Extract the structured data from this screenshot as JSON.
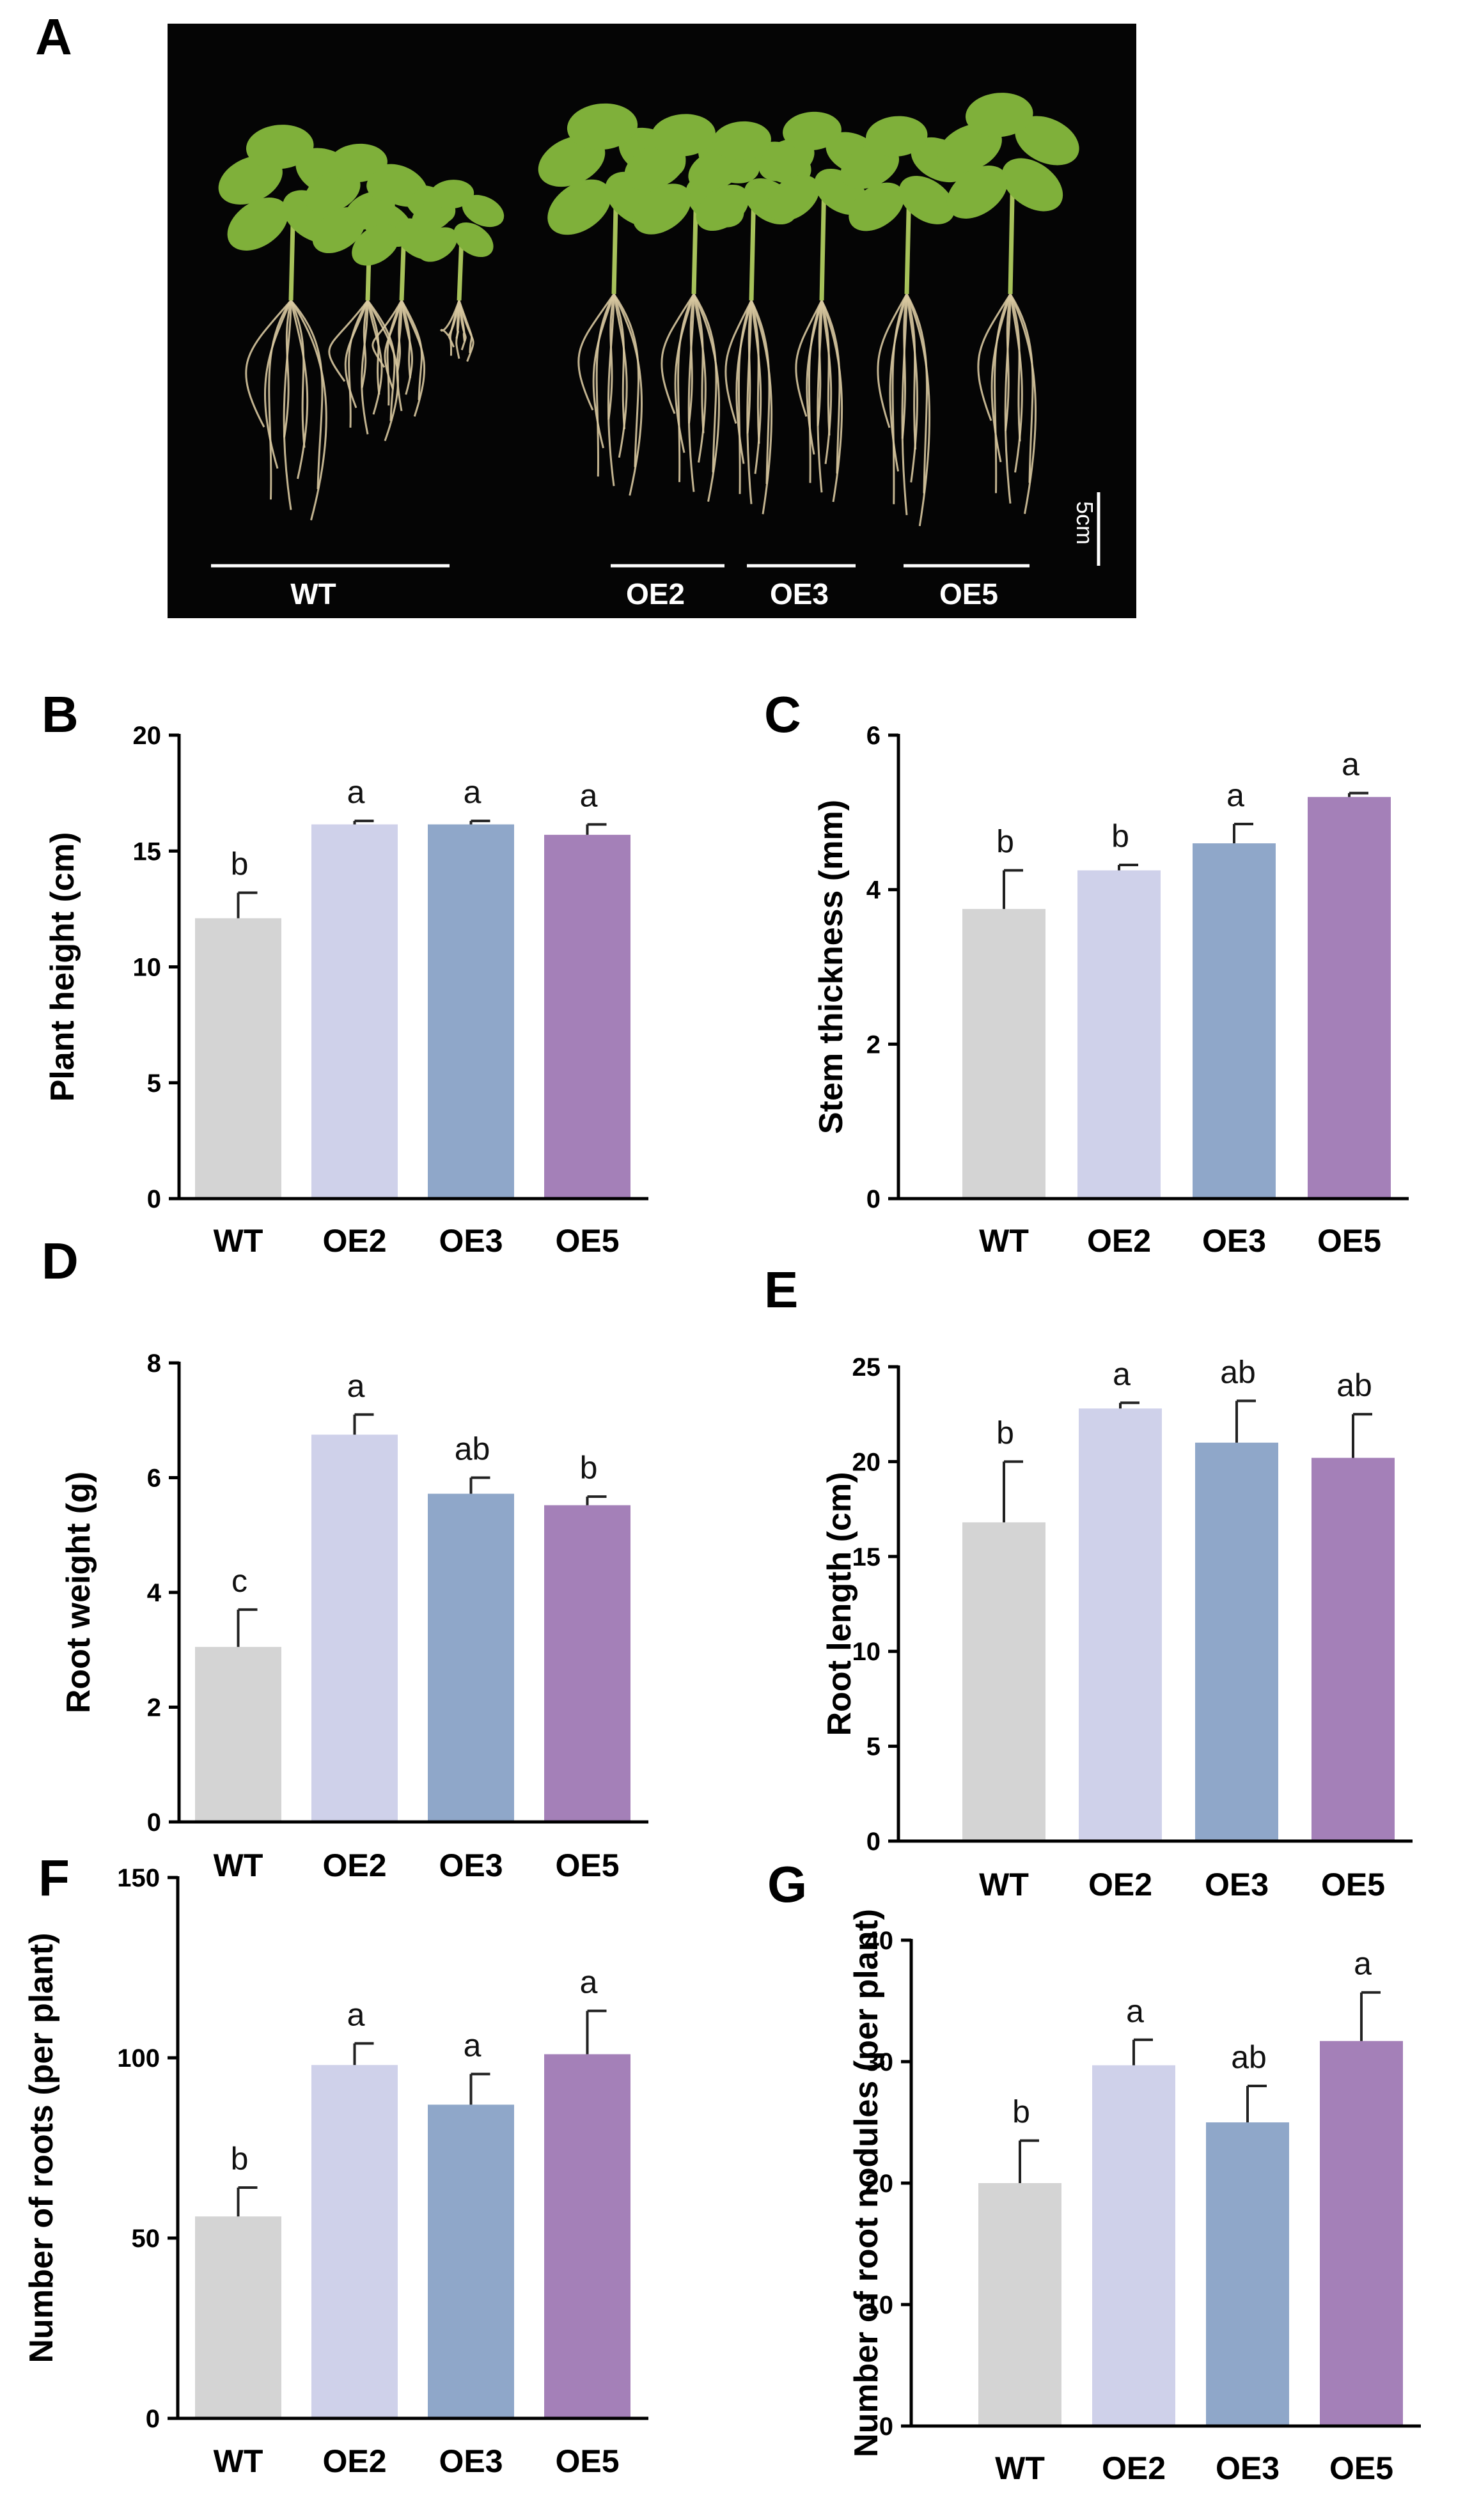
{
  "figure": {
    "panel_a": {
      "letter": "A",
      "groups": [
        "WT",
        "OE2",
        "OE3",
        "OE5"
      ],
      "scale_bar": "5cm",
      "colors": {
        "background": "#050505",
        "leaf": "#7fb03a",
        "stem": "#a7c25a",
        "root": "#d8c8a0"
      }
    }
  },
  "chart_data": [
    {
      "panel": "B",
      "type": "bar",
      "categories": [
        "WT",
        "OE2",
        "OE3",
        "OE5"
      ],
      "values": [
        12.1,
        16.15,
        16.15,
        15.7
      ],
      "errors": [
        1.1,
        0.15,
        0.15,
        0.45
      ],
      "significance": [
        "b",
        "a",
        "a",
        "a"
      ],
      "ylabel": "Plant height (cm)",
      "ylim": [
        0,
        20
      ],
      "yticks": [
        0,
        5,
        10,
        15,
        20
      ],
      "colors": [
        "#d4d4d4",
        "#cfd1ea",
        "#8fa7c9",
        "#a480b8"
      ]
    },
    {
      "panel": "C",
      "type": "bar",
      "categories": [
        "WT",
        "OE2",
        "OE3",
        "OE5"
      ],
      "values": [
        3.75,
        4.25,
        4.6,
        5.2
      ],
      "errors": [
        0.5,
        0.07,
        0.25,
        0.05
      ],
      "significance": [
        "b",
        "b",
        "a",
        "a"
      ],
      "ylabel": "Stem thickness (mm)",
      "ylim": [
        0,
        6
      ],
      "yticks": [
        0,
        2,
        4,
        6
      ],
      "colors": [
        "#d4d4d4",
        "#cfd1ea",
        "#8fa7c9",
        "#a480b8"
      ]
    },
    {
      "panel": "D",
      "type": "bar",
      "categories": [
        "WT",
        "OE2",
        "OE3",
        "OE5"
      ],
      "values": [
        3.05,
        6.75,
        5.72,
        5.52
      ],
      "errors": [
        0.65,
        0.35,
        0.28,
        0.15
      ],
      "significance": [
        "c",
        "a",
        "ab",
        "b"
      ],
      "ylabel": "Root weight (g)",
      "ylim": [
        0,
        8
      ],
      "yticks": [
        0,
        2,
        4,
        6,
        8
      ],
      "colors": [
        "#d4d4d4",
        "#cfd1ea",
        "#8fa7c9",
        "#a480b8"
      ]
    },
    {
      "panel": "E",
      "type": "bar",
      "categories": [
        "WT",
        "OE2",
        "OE3",
        "OE5"
      ],
      "values": [
        16.8,
        22.8,
        21.0,
        20.2
      ],
      "errors": [
        3.2,
        0.3,
        2.2,
        2.3
      ],
      "significance": [
        "b",
        "a",
        "ab",
        "ab"
      ],
      "ylabel": "Root length (cm)",
      "ylim": [
        0,
        25
      ],
      "yticks": [
        0,
        5,
        10,
        15,
        20,
        25
      ],
      "colors": [
        "#d4d4d4",
        "#cfd1ea",
        "#8fa7c9",
        "#a480b8"
      ]
    },
    {
      "panel": "F",
      "type": "bar",
      "categories": [
        "WT",
        "OE2",
        "OE3",
        "OE5"
      ],
      "values": [
        56,
        98,
        87,
        101
      ],
      "errors": [
        8,
        6,
        8.5,
        12
      ],
      "significance": [
        "b",
        "a",
        "a",
        "a"
      ],
      "ylabel": "Number of roots (per plant)",
      "ylim": [
        0,
        150
      ],
      "yticks": [
        0,
        50,
        100,
        150
      ],
      "colors": [
        "#d4d4d4",
        "#cfd1ea",
        "#8fa7c9",
        "#a480b8"
      ]
    },
    {
      "panel": "G",
      "type": "bar",
      "categories": [
        "WT",
        "OE2",
        "OE3",
        "OE5"
      ],
      "values": [
        20,
        29.7,
        25,
        31.7
      ],
      "errors": [
        3.5,
        2.1,
        3.0,
        4.0
      ],
      "significance": [
        "b",
        "a",
        "ab",
        "a"
      ],
      "ylabel": "Number of root nodules (per plant)",
      "ylim": [
        0,
        40
      ],
      "yticks": [
        0,
        10,
        20,
        30,
        40
      ],
      "colors": [
        "#d4d4d4",
        "#cfd1ea",
        "#8fa7c9",
        "#a480b8"
      ]
    }
  ]
}
